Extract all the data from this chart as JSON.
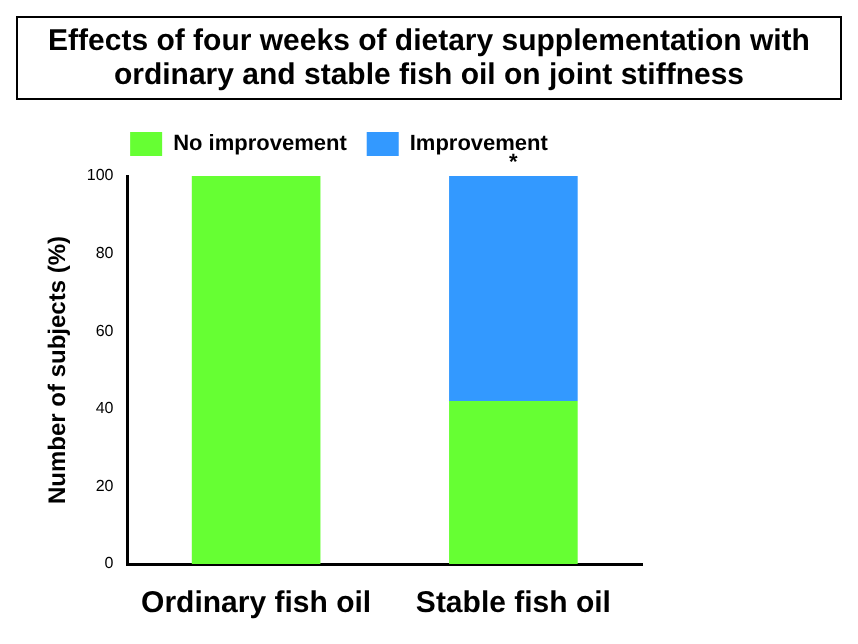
{
  "chart_data": {
    "type": "bar",
    "title": "Effects of four weeks of dietary supplementation with ordinary and stable fish oil on joint stiffness",
    "ylabel": "Number of subjects (%)",
    "categories": [
      "Ordinary fish oil",
      "Stable fish oil"
    ],
    "stacked": true,
    "series": [
      {
        "name": "No improvement",
        "color": "#66ff33",
        "values": [
          100,
          42
        ]
      },
      {
        "name": "Improvement",
        "color": "#3399ff",
        "values": [
          0,
          58
        ]
      }
    ],
    "ylim": [
      0,
      100
    ],
    "yticks": [
      0,
      20,
      40,
      60,
      80,
      100
    ],
    "grid": false,
    "legend": "top",
    "annotations": [
      {
        "text": "*",
        "x": "Stable fish oil",
        "y": 100
      }
    ]
  }
}
